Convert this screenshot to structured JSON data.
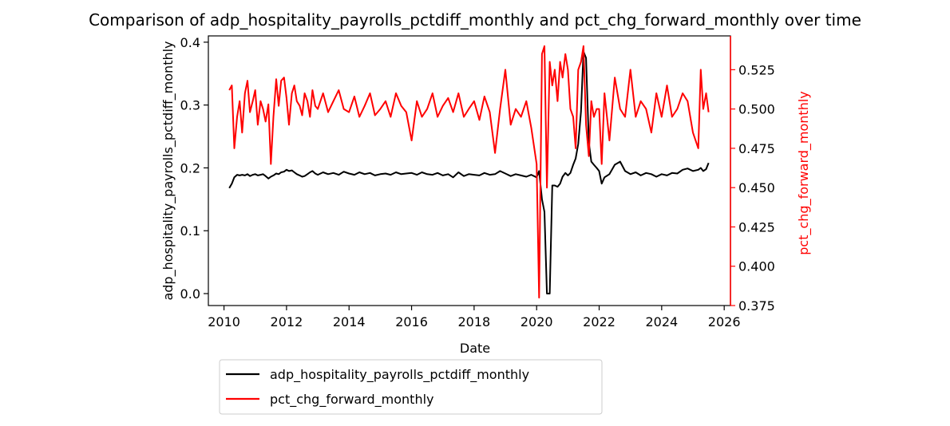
{
  "chart_data": {
    "type": "line",
    "title": "Comparison of adp_hospitality_payrolls_pctdiff_monthly and pct_chg_forward_monthly over time",
    "xlabel": "Date",
    "ylabel_left": "adp_hospitality_payrolls_pctdiff_monthly",
    "ylabel_right": "pct_chg_forward_monthly",
    "xlim": [
      2009.5,
      2026.2
    ],
    "ylim_left": [
      -0.019,
      0.41
    ],
    "ylim_right": [
      0.375,
      0.5465
    ],
    "x_ticks": [
      2010,
      2012,
      2014,
      2016,
      2018,
      2020,
      2022,
      2024,
      2026
    ],
    "x_tick_labels": [
      "2010",
      "2012",
      "2014",
      "2016",
      "2018",
      "2020",
      "2022",
      "2024",
      "2026"
    ],
    "y_left_ticks": [
      0.0,
      0.1,
      0.2,
      0.3,
      0.4
    ],
    "y_left_tick_labels": [
      "0.0",
      "0.1",
      "0.2",
      "0.3",
      "0.4"
    ],
    "y_right_ticks": [
      0.375,
      0.4,
      0.425,
      0.45,
      0.475,
      0.5,
      0.525
    ],
    "y_right_tick_labels": [
      "0.375",
      "0.400",
      "0.425",
      "0.450",
      "0.475",
      "0.500",
      "0.525"
    ],
    "grid": false,
    "legend_placement": "below-left",
    "colors": {
      "left_series": "#000000",
      "right_series": "#ff0000",
      "right_axis": "#ff0000"
    },
    "series": [
      {
        "name": "adp_hospitality_payrolls_pctdiff_monthly",
        "axis": "left",
        "x": [
          2010.17,
          2010.25,
          2010.33,
          2010.42,
          2010.5,
          2010.58,
          2010.67,
          2010.75,
          2010.83,
          2010.92,
          2011.0,
          2011.08,
          2011.17,
          2011.25,
          2011.33,
          2011.42,
          2011.5,
          2011.58,
          2011.67,
          2011.75,
          2011.83,
          2011.92,
          2012.0,
          2012.08,
          2012.17,
          2012.25,
          2012.33,
          2012.42,
          2012.5,
          2012.58,
          2012.67,
          2012.75,
          2012.83,
          2012.92,
          2013.0,
          2013.17,
          2013.33,
          2013.5,
          2013.67,
          2013.83,
          2014.0,
          2014.17,
          2014.33,
          2014.5,
          2014.67,
          2014.83,
          2015.0,
          2015.17,
          2015.33,
          2015.5,
          2015.67,
          2015.83,
          2016.0,
          2016.17,
          2016.33,
          2016.5,
          2016.67,
          2016.83,
          2017.0,
          2017.17,
          2017.33,
          2017.5,
          2017.67,
          2017.83,
          2018.0,
          2018.17,
          2018.33,
          2018.5,
          2018.67,
          2018.83,
          2019.0,
          2019.17,
          2019.33,
          2019.5,
          2019.67,
          2019.83,
          2020.0,
          2020.08,
          2020.17,
          2020.25,
          2020.33,
          2020.42,
          2020.5,
          2020.58,
          2020.67,
          2020.75,
          2020.83,
          2020.92,
          2021.0,
          2021.08,
          2021.17,
          2021.25,
          2021.33,
          2021.42,
          2021.5,
          2021.58,
          2021.67,
          2021.75,
          2021.83,
          2021.92,
          2022.0,
          2022.08,
          2022.17,
          2022.33,
          2022.5,
          2022.67,
          2022.83,
          2023.0,
          2023.17,
          2023.33,
          2023.5,
          2023.67,
          2023.83,
          2024.0,
          2024.17,
          2024.33,
          2024.5,
          2024.67,
          2024.83,
          2025.0,
          2025.17,
          2025.25,
          2025.33,
          2025.42,
          2025.5
        ],
        "values": [
          0.168,
          0.175,
          0.185,
          0.189,
          0.188,
          0.189,
          0.188,
          0.19,
          0.187,
          0.189,
          0.19,
          0.188,
          0.189,
          0.19,
          0.187,
          0.183,
          0.186,
          0.188,
          0.191,
          0.19,
          0.193,
          0.194,
          0.197,
          0.195,
          0.196,
          0.193,
          0.19,
          0.188,
          0.186,
          0.187,
          0.19,
          0.193,
          0.195,
          0.191,
          0.189,
          0.193,
          0.19,
          0.192,
          0.189,
          0.194,
          0.191,
          0.189,
          0.193,
          0.19,
          0.192,
          0.188,
          0.19,
          0.191,
          0.189,
          0.193,
          0.19,
          0.191,
          0.192,
          0.189,
          0.193,
          0.19,
          0.189,
          0.192,
          0.188,
          0.19,
          0.185,
          0.193,
          0.187,
          0.19,
          0.189,
          0.188,
          0.192,
          0.189,
          0.19,
          0.195,
          0.191,
          0.187,
          0.19,
          0.188,
          0.186,
          0.189,
          0.185,
          0.195,
          0.15,
          0.13,
          0.0,
          0.0,
          0.172,
          0.172,
          0.17,
          0.175,
          0.186,
          0.192,
          0.188,
          0.192,
          0.205,
          0.215,
          0.238,
          0.29,
          0.385,
          0.375,
          0.24,
          0.21,
          0.205,
          0.2,
          0.195,
          0.175,
          0.185,
          0.19,
          0.205,
          0.21,
          0.195,
          0.19,
          0.193,
          0.188,
          0.192,
          0.19,
          0.186,
          0.19,
          0.188,
          0.192,
          0.191,
          0.197,
          0.199,
          0.195,
          0.197,
          0.2,
          0.195,
          0.198,
          0.208
        ]
      },
      {
        "name": "pct_chg_forward_monthly",
        "axis": "right",
        "x": [
          2010.17,
          2010.25,
          2010.33,
          2010.42,
          2010.5,
          2010.58,
          2010.67,
          2010.75,
          2010.83,
          2010.92,
          2011.0,
          2011.08,
          2011.17,
          2011.25,
          2011.33,
          2011.42,
          2011.5,
          2011.58,
          2011.67,
          2011.75,
          2011.83,
          2011.92,
          2012.0,
          2012.08,
          2012.17,
          2012.25,
          2012.33,
          2012.42,
          2012.5,
          2012.58,
          2012.67,
          2012.75,
          2012.83,
          2012.92,
          2013.0,
          2013.17,
          2013.33,
          2013.5,
          2013.67,
          2013.83,
          2014.0,
          2014.17,
          2014.33,
          2014.5,
          2014.67,
          2014.83,
          2015.0,
          2015.17,
          2015.33,
          2015.5,
          2015.67,
          2015.83,
          2016.0,
          2016.17,
          2016.33,
          2016.5,
          2016.67,
          2016.83,
          2017.0,
          2017.17,
          2017.33,
          2017.5,
          2017.67,
          2017.83,
          2018.0,
          2018.17,
          2018.33,
          2018.5,
          2018.67,
          2018.83,
          2019.0,
          2019.17,
          2019.33,
          2019.5,
          2019.67,
          2019.83,
          2020.0,
          2020.08,
          2020.17,
          2020.25,
          2020.33,
          2020.42,
          2020.5,
          2020.58,
          2020.67,
          2020.75,
          2020.83,
          2020.92,
          2021.0,
          2021.08,
          2021.17,
          2021.25,
          2021.33,
          2021.42,
          2021.5,
          2021.58,
          2021.67,
          2021.75,
          2021.83,
          2021.92,
          2022.0,
          2022.08,
          2022.17,
          2022.33,
          2022.5,
          2022.67,
          2022.83,
          2023.0,
          2023.17,
          2023.33,
          2023.5,
          2023.67,
          2023.83,
          2024.0,
          2024.17,
          2024.33,
          2024.5,
          2024.67,
          2024.83,
          2025.0,
          2025.17,
          2025.25,
          2025.33,
          2025.42,
          2025.5
        ],
        "values": [
          0.512,
          0.515,
          0.475,
          0.495,
          0.505,
          0.485,
          0.51,
          0.518,
          0.498,
          0.505,
          0.512,
          0.49,
          0.505,
          0.5,
          0.492,
          0.503,
          0.465,
          0.495,
          0.519,
          0.502,
          0.518,
          0.52,
          0.507,
          0.49,
          0.51,
          0.515,
          0.505,
          0.502,
          0.496,
          0.51,
          0.505,
          0.495,
          0.512,
          0.502,
          0.5,
          0.51,
          0.498,
          0.505,
          0.512,
          0.5,
          0.498,
          0.508,
          0.495,
          0.502,
          0.51,
          0.496,
          0.5,
          0.505,
          0.495,
          0.51,
          0.502,
          0.498,
          0.48,
          0.505,
          0.495,
          0.5,
          0.51,
          0.495,
          0.502,
          0.507,
          0.498,
          0.51,
          0.495,
          0.5,
          0.505,
          0.493,
          0.508,
          0.498,
          0.472,
          0.5,
          0.525,
          0.49,
          0.5,
          0.495,
          0.505,
          0.488,
          0.465,
          0.38,
          0.535,
          0.54,
          0.45,
          0.53,
          0.515,
          0.525,
          0.505,
          0.53,
          0.52,
          0.535,
          0.525,
          0.5,
          0.495,
          0.475,
          0.525,
          0.53,
          0.54,
          0.49,
          0.47,
          0.505,
          0.495,
          0.5,
          0.5,
          0.465,
          0.51,
          0.48,
          0.52,
          0.5,
          0.495,
          0.525,
          0.495,
          0.505,
          0.5,
          0.485,
          0.51,
          0.495,
          0.515,
          0.495,
          0.5,
          0.51,
          0.505,
          0.485,
          0.475,
          0.525,
          0.5,
          0.51,
          0.498
        ]
      }
    ]
  }
}
